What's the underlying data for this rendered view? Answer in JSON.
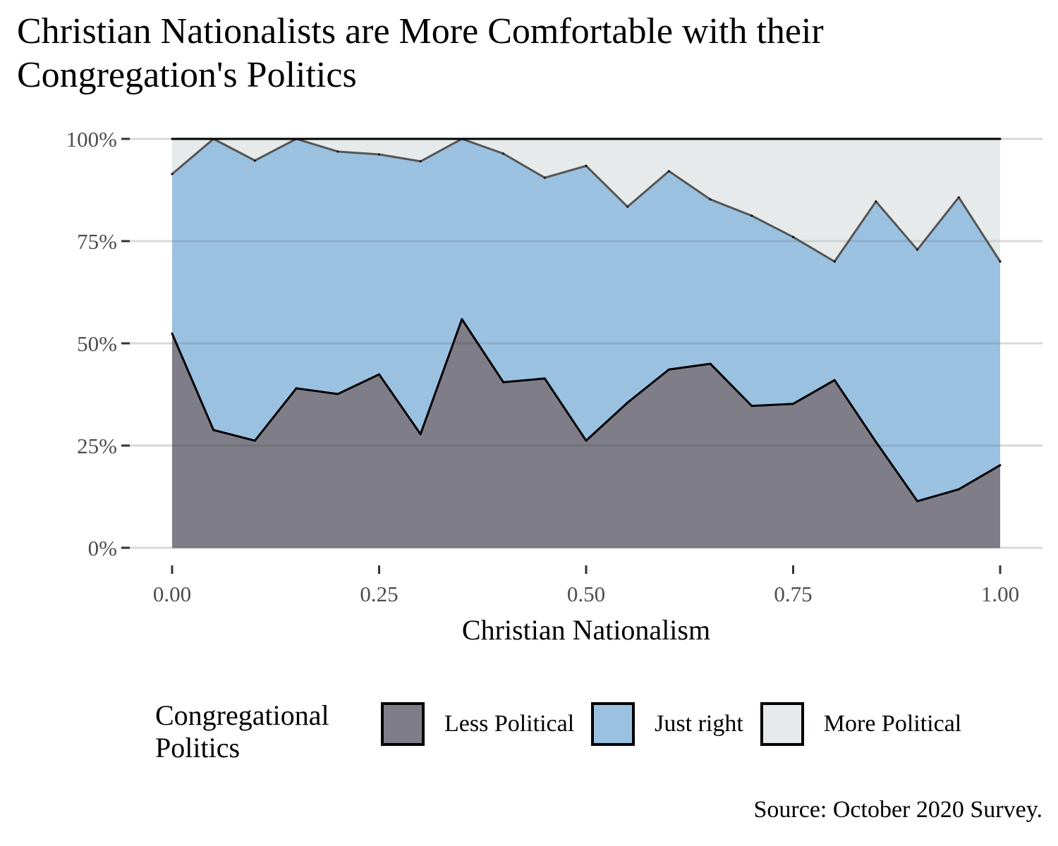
{
  "chart_data": {
    "type": "area",
    "stacked": true,
    "normalized": true,
    "title": "Christian Nationalists are More Comfortable with their Congregation's Politics",
    "xlabel": "Christian Nationalism",
    "ylabel": "",
    "caption": "Source: October 2020 Survey.",
    "x": [
      0.0,
      0.05,
      0.1,
      0.15,
      0.2,
      0.25,
      0.3,
      0.35,
      0.4,
      0.45,
      0.5,
      0.55,
      0.6,
      0.65,
      0.7,
      0.75,
      0.8,
      0.85,
      0.9,
      0.95,
      1.0
    ],
    "xlim": [
      0,
      1
    ],
    "ylim": [
      0,
      100
    ],
    "x_ticks": [
      0,
      0.25,
      0.5,
      0.75,
      1.0
    ],
    "x_tick_labels": [
      "0.00",
      "0.25",
      "0.50",
      "0.75",
      "1.00"
    ],
    "y_ticks": [
      0,
      25,
      50,
      75,
      100
    ],
    "y_tick_labels": [
      "0%",
      "25%",
      "50%",
      "75%",
      "100%"
    ],
    "grid": "horizontal major",
    "legend": {
      "title": "Congregational\nPolitics",
      "position": "bottom"
    },
    "series": [
      {
        "name": "Less Political",
        "color": "#7f7e88",
        "values": [
          52.4,
          28.8,
          26.2,
          39.0,
          37.6,
          42.4,
          27.8,
          55.9,
          40.5,
          41.4,
          26.2,
          35.5,
          43.6,
          45.0,
          34.7,
          35.2,
          41.0,
          25.9,
          11.4,
          14.3,
          20.2
        ]
      },
      {
        "name": "Just right",
        "color": "#9bc1e1",
        "values": [
          39.0,
          71.2,
          68.5,
          61.0,
          59.3,
          53.8,
          66.7,
          44.1,
          55.9,
          49.1,
          67.2,
          47.9,
          48.5,
          40.2,
          46.5,
          40.8,
          29.0,
          58.8,
          61.5,
          71.4,
          49.8
        ]
      },
      {
        "name": "More Political",
        "color": "#e6eaeb",
        "values": [
          8.6,
          0.0,
          5.3,
          0.0,
          3.1,
          3.8,
          5.5,
          0.0,
          3.6,
          9.5,
          6.6,
          16.6,
          7.9,
          14.8,
          18.8,
          24.0,
          30.0,
          15.3,
          27.1,
          14.3,
          30.0
        ]
      }
    ]
  }
}
